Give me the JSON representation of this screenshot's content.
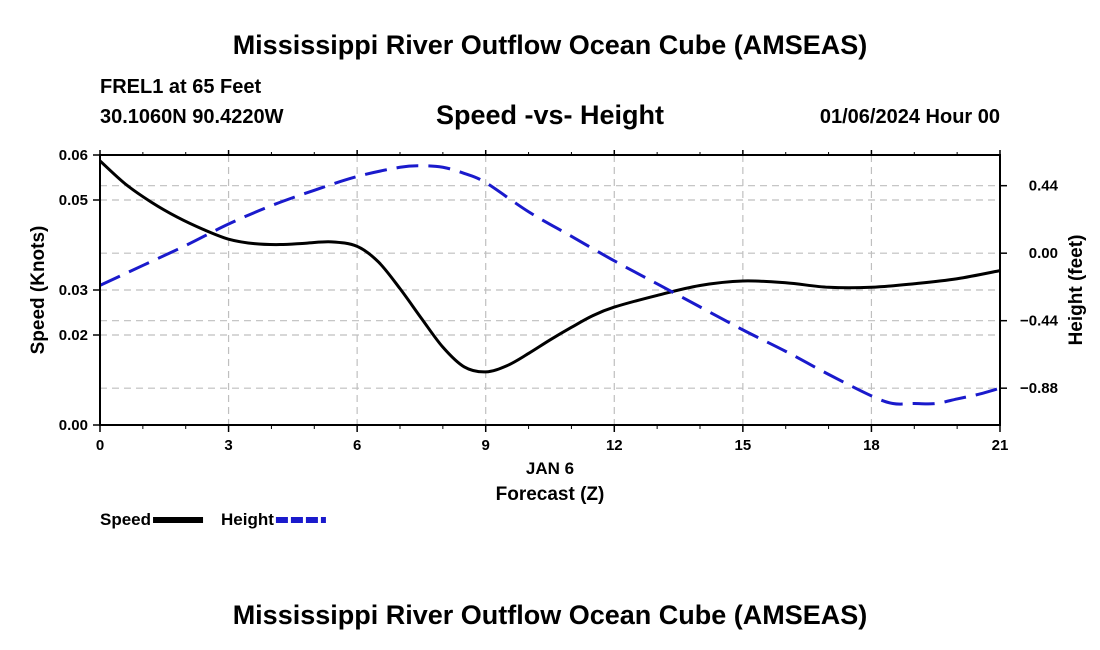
{
  "header": {
    "title": "Mississippi River Outflow Ocean Cube (AMSEAS)",
    "station": "FREL1 at 65 Feet",
    "coords": "30.1060N  90.4220W",
    "subtitle": "Speed -vs- Height",
    "timestamp": "01/06/2024 Hour 00"
  },
  "footer": {
    "title": "Mississippi River Outflow Ocean Cube (AMSEAS)"
  },
  "chart_data": {
    "type": "line",
    "title": "Speed -vs- Height",
    "xlabel_date": "JAN 6",
    "xlabel": "Forecast (Z)",
    "ylabel_left": "Speed (Knots)",
    "ylabel_right": "Height (feet)",
    "xlim": [
      0,
      21
    ],
    "ylim_left": [
      0,
      0.06
    ],
    "ylim_right": [
      -1.12,
      0.64
    ],
    "x_ticks": [
      0,
      3,
      6,
      9,
      12,
      15,
      18,
      21
    ],
    "x_tick_labels": [
      "0",
      "3",
      "6",
      "9",
      "12",
      "15",
      "18",
      "21"
    ],
    "y_left_ticks": [
      0,
      0.02,
      0.03,
      0.05,
      0.06
    ],
    "y_left_tick_labels": [
      "0.00",
      "0.02",
      "0.03",
      "0.05",
      "0.06"
    ],
    "y_right_ticks": [
      0.44,
      0,
      -0.44,
      -0.88
    ],
    "y_right_tick_labels": [
      "0.44",
      "0.00",
      "−0.44",
      "−0.88"
    ],
    "grid": true,
    "series": [
      {
        "name": "Speed",
        "axis": "left",
        "color": "#000000",
        "dash": "solid",
        "x": [
          0,
          0.6,
          1.2,
          1.8,
          2.4,
          3.0,
          3.6,
          4.2,
          4.8,
          5.4,
          6.0,
          6.5,
          7.0,
          7.5,
          8.0,
          8.5,
          9.0,
          9.5,
          10.0,
          10.5,
          11.0,
          11.5,
          12.0,
          13.0,
          14.0,
          15.0,
          16.0,
          17.0,
          18.0,
          19.0,
          20.0,
          21.0
        ],
        "values": [
          0.0587,
          0.0535,
          0.0495,
          0.0462,
          0.0435,
          0.0413,
          0.0403,
          0.0401,
          0.0404,
          0.0407,
          0.0397,
          0.0362,
          0.0303,
          0.0237,
          0.0173,
          0.0129,
          0.0118,
          0.0132,
          0.0159,
          0.0189,
          0.0217,
          0.0243,
          0.0262,
          0.0288,
          0.031,
          0.032,
          0.0316,
          0.0306,
          0.0306,
          0.0314,
          0.0325,
          0.0343
        ]
      },
      {
        "name": "Height",
        "axis": "right",
        "color": "#1a1acc",
        "dash": "dashed",
        "x": [
          0,
          1,
          2,
          3,
          4,
          5,
          6,
          7,
          7.5,
          8,
          8.5,
          9,
          10,
          11,
          12,
          13,
          14,
          15,
          16,
          17,
          18,
          18.5,
          19,
          19.5,
          20,
          20.5,
          21
        ],
        "values": [
          -0.21,
          -0.08,
          0.05,
          0.19,
          0.31,
          0.41,
          0.5,
          0.56,
          0.57,
          0.56,
          0.52,
          0.46,
          0.27,
          0.11,
          -0.05,
          -0.2,
          -0.35,
          -0.5,
          -0.64,
          -0.79,
          -0.93,
          -0.98,
          -0.98,
          -0.98,
          -0.95,
          -0.92,
          -0.88
        ]
      }
    ],
    "legend": [
      {
        "label": "Speed",
        "color": "#000000",
        "dash": "solid"
      },
      {
        "label": "Height",
        "color": "#1a1acc",
        "dash": "dashed"
      }
    ],
    "legend_position": "bottom-left"
  }
}
